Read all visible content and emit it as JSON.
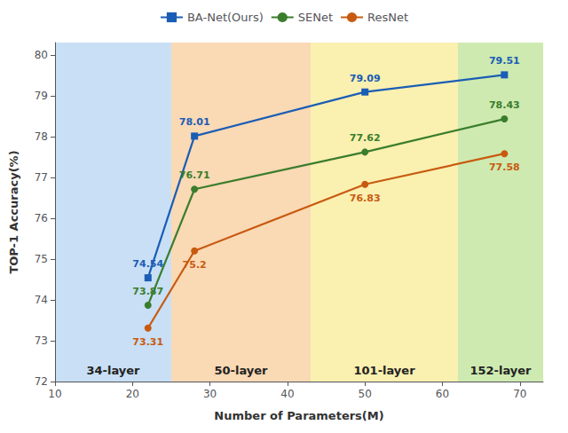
{
  "chart_data": {
    "type": "line",
    "xlabel": "Number of Parameters(M)",
    "ylabel": "TOP-1 Accuracy(%)",
    "xlim": [
      10,
      73
    ],
    "ylim": [
      72,
      80.3
    ],
    "xticks": [
      10,
      20,
      30,
      40,
      50,
      60,
      70
    ],
    "yticks": [
      72,
      73,
      74,
      75,
      76,
      77,
      78,
      79,
      80
    ],
    "grid": false,
    "legend": "top",
    "data_labels": true,
    "series": [
      {
        "name": "BA-Net(Ours)",
        "color": "#1a5db5",
        "marker": "square",
        "x": [
          22,
          28,
          50,
          68
        ],
        "values": [
          74.54,
          78.01,
          79.09,
          79.51
        ]
      },
      {
        "name": "SENet",
        "color": "#3a7d2c",
        "marker": "circle",
        "x": [
          22,
          28,
          50,
          68
        ],
        "values": [
          73.87,
          76.71,
          77.62,
          78.43
        ]
      },
      {
        "name": "ResNet",
        "color": "#c85a10",
        "marker": "circle",
        "x": [
          22,
          28,
          50,
          68
        ],
        "values": [
          73.31,
          75.2,
          76.83,
          77.58
        ]
      }
    ],
    "zones": [
      {
        "label": "34-layer",
        "xmin": 10,
        "xmax": 25,
        "color": "#C8DFF5"
      },
      {
        "label": "50-layer",
        "xmin": 25,
        "xmax": 43,
        "color": "#FAD9B5"
      },
      {
        "label": "101-layer",
        "xmin": 43,
        "xmax": 62,
        "color": "#FAF0B0"
      },
      {
        "label": "152-layer",
        "xmin": 62,
        "xmax": 73,
        "color": "#CEEAB0"
      }
    ]
  }
}
